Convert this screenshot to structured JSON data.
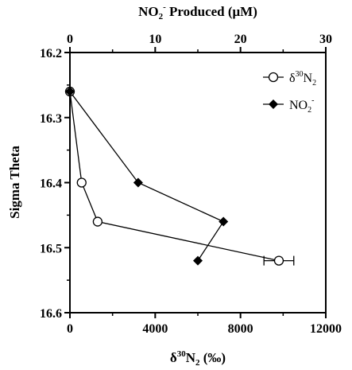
{
  "chart_data": {
    "type": "scatter",
    "title": "",
    "y_axis": {
      "label": "Sigma Theta",
      "range": [
        16.2,
        16.6
      ],
      "inverted": true,
      "ticks": [
        "16.2",
        "16.3",
        "16.4",
        "16.5",
        "16.6"
      ]
    },
    "x_bottom": {
      "label_main": "δ",
      "label_sup": "30",
      "label_mid": "N",
      "label_sub": "2",
      "label_tail": " (‰)",
      "range": [
        0,
        12000
      ],
      "ticks": [
        "0",
        "4000",
        "8000",
        "12000"
      ]
    },
    "x_top": {
      "label_main": "NO",
      "label_sub": "2",
      "label_sup": "-",
      "label_tail": " Produced (μM)",
      "range": [
        0,
        30
      ],
      "ticks": [
        "0",
        "10",
        "20",
        "30"
      ]
    },
    "legend": {
      "position": "top-right",
      "d30n2": {
        "pre": "δ",
        "sup": "30",
        "mid": "N",
        "sub": "2"
      },
      "no2": {
        "pre": "NO",
        "sub": "2",
        "sup": "-"
      }
    },
    "series": [
      {
        "name": "δ30N2",
        "marker": "open-circle",
        "axis": "bottom",
        "points": [
          [
            0,
            16.26
          ],
          [
            550,
            16.4
          ],
          [
            1300,
            16.46
          ],
          [
            9800,
            16.52
          ]
        ],
        "xerr": [
          0,
          0,
          0,
          700
        ]
      },
      {
        "name": "NO2-",
        "marker": "filled-diamond",
        "axis": "top",
        "points": [
          [
            0,
            16.26
          ],
          [
            8,
            16.4
          ],
          [
            18,
            16.46
          ],
          [
            15,
            16.52
          ]
        ]
      }
    ],
    "grid": false
  }
}
